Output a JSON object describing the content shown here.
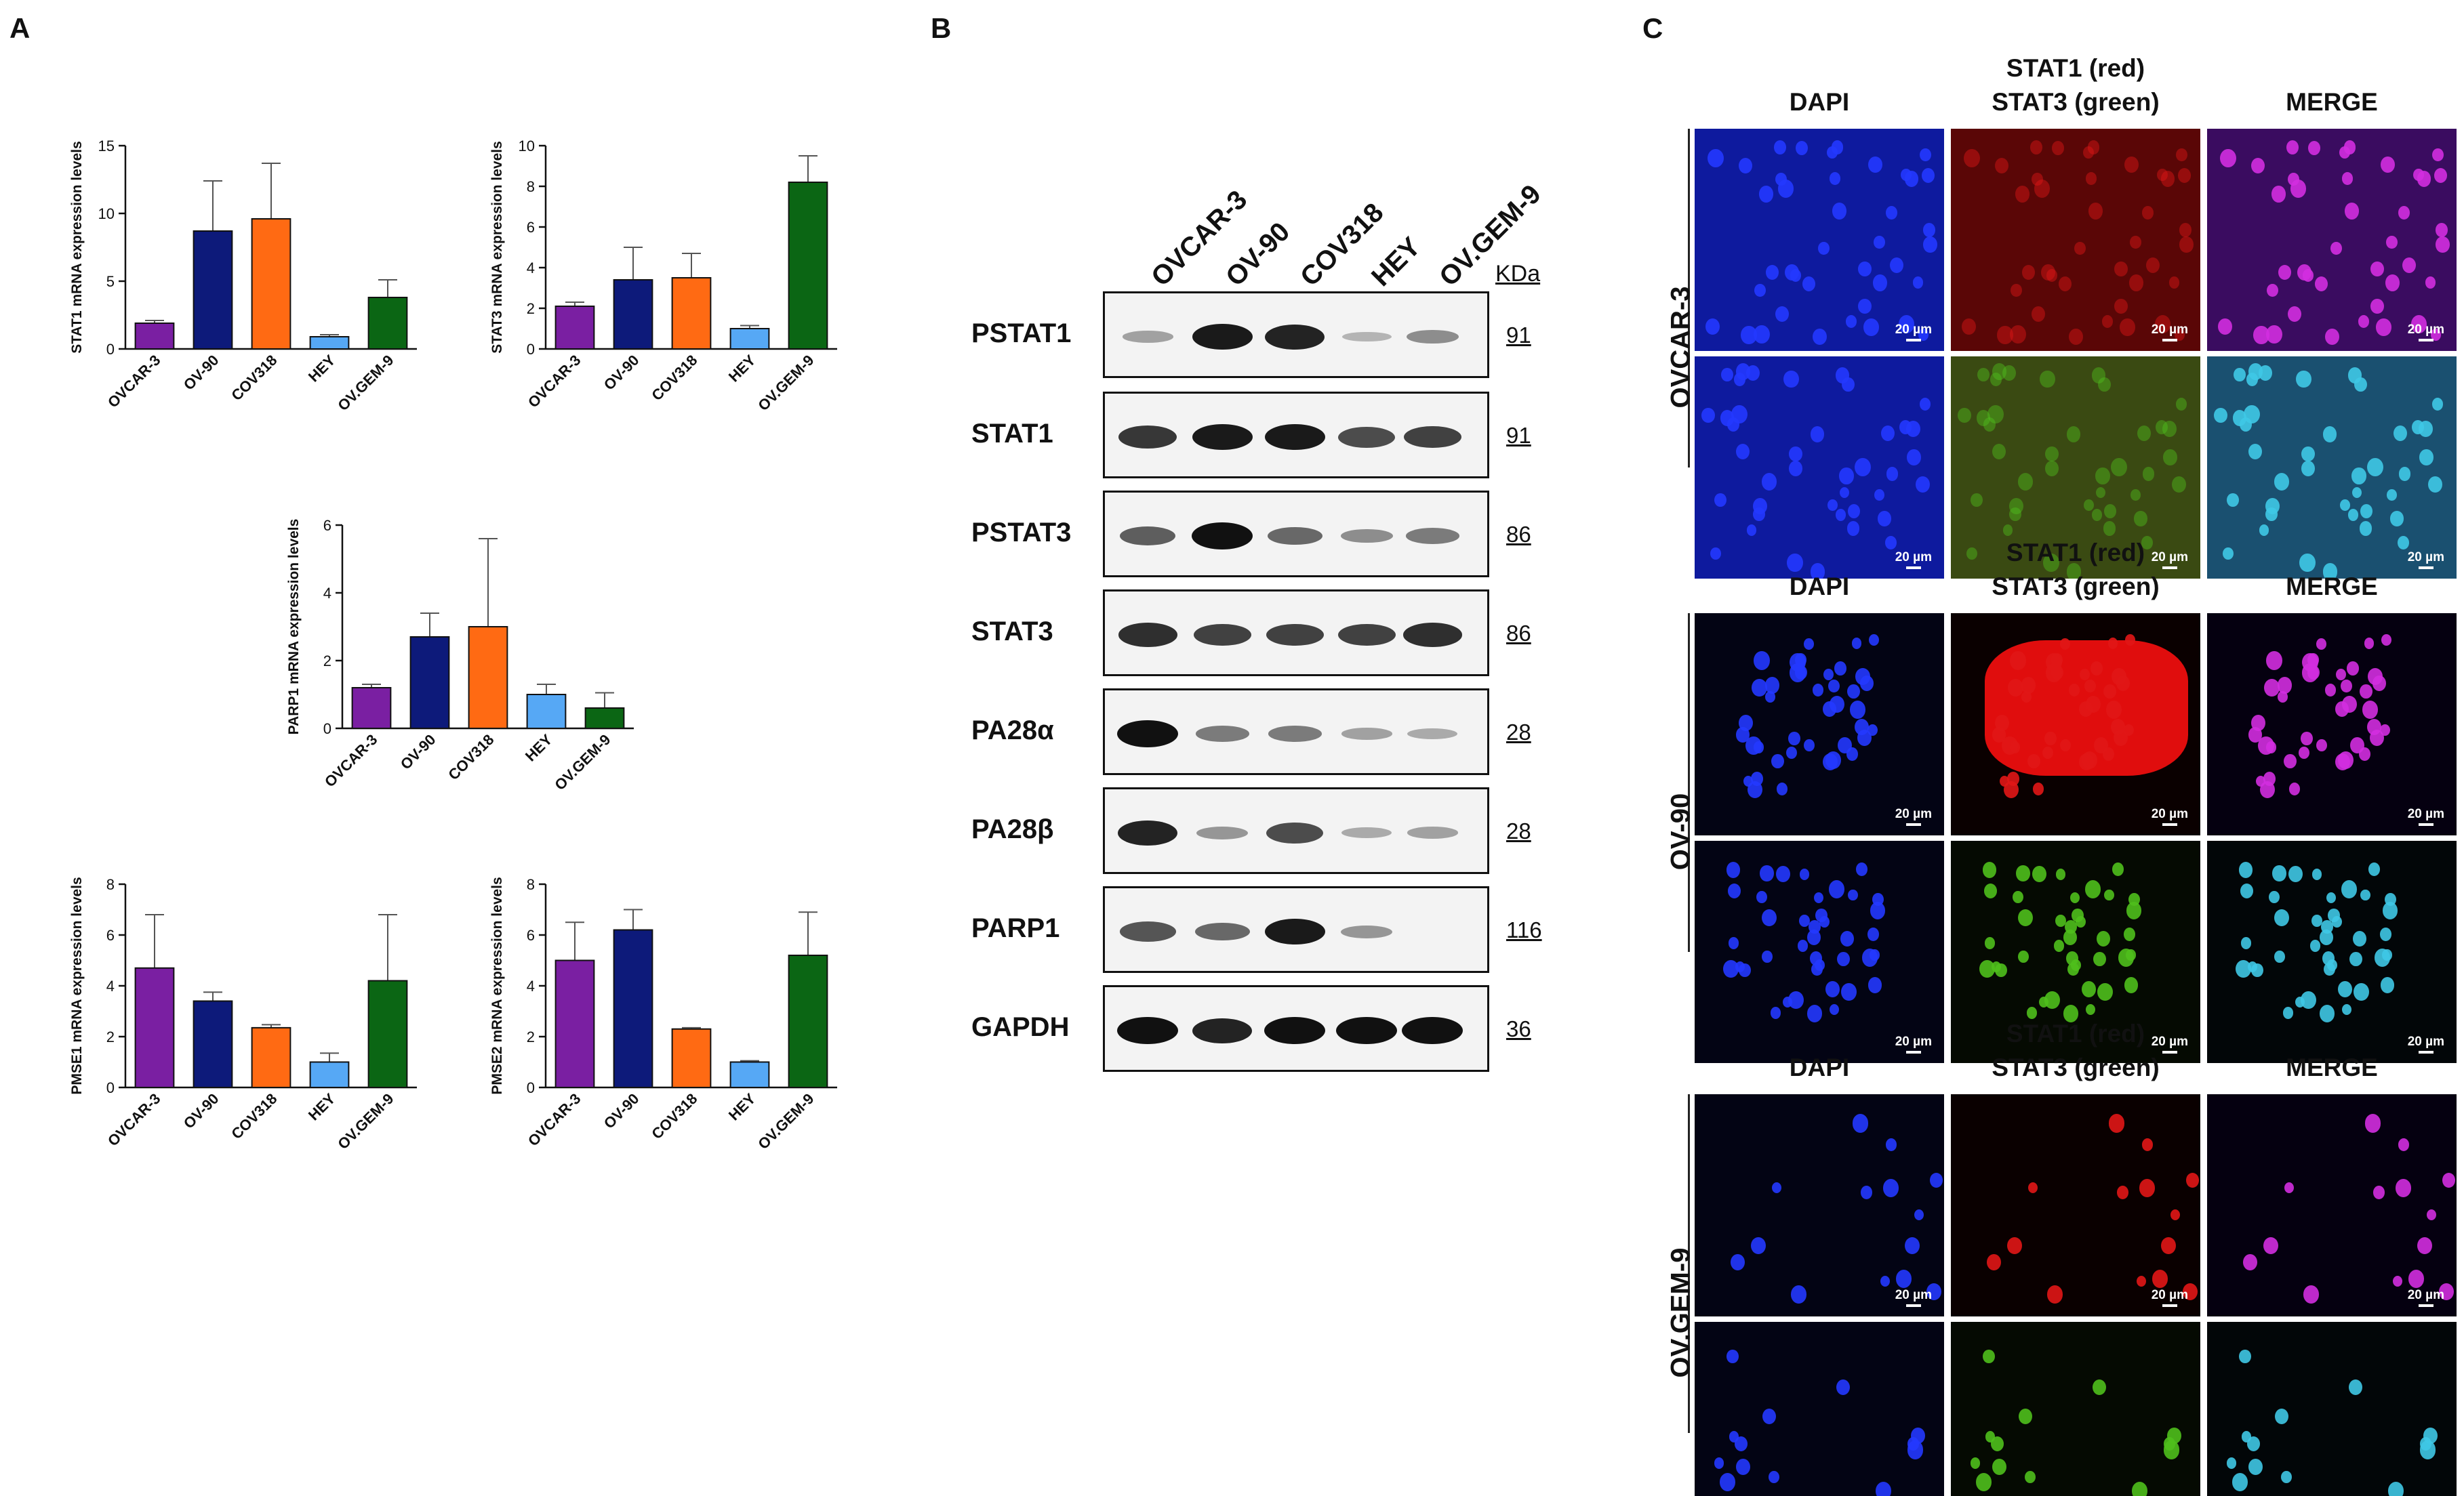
{
  "panels": {
    "a": "A",
    "b": "B",
    "c": "C"
  },
  "colors": {
    "OVCAR-3": "#7a1fa2",
    "OV-90": "#0d1a7a",
    "COV318": "#ff6a13",
    "HEY": "#56a8f5",
    "OV.GEM-9": "#0b6614"
  },
  "chart_data": [
    {
      "type": "bar",
      "categories": [
        "OVCAR-3",
        "OV-90",
        "COV318",
        "HEY",
        "OV.GEM-9"
      ],
      "values": [
        1.9,
        8.7,
        9.6,
        0.9,
        3.8
      ],
      "errors": [
        0.2,
        3.7,
        4.1,
        0.15,
        1.3
      ],
      "ylabel": "STAT1 mRNA expression levels",
      "ylim": [
        0,
        15
      ],
      "yticks": [
        "0",
        "5",
        "10",
        "15"
      ]
    },
    {
      "type": "bar",
      "categories": [
        "OVCAR-3",
        "OV-90",
        "COV318",
        "HEY",
        "OV.GEM-9"
      ],
      "values": [
        2.1,
        3.4,
        3.5,
        1.0,
        8.2
      ],
      "errors": [
        0.2,
        1.6,
        1.2,
        0.15,
        1.3
      ],
      "ylabel": "STAT3 mRNA expression levels",
      "ylim": [
        0,
        10
      ],
      "yticks": [
        "0",
        "2",
        "4",
        "6",
        "8",
        "10"
      ]
    },
    {
      "type": "bar",
      "categories": [
        "OVCAR-3",
        "OV-90",
        "COV318",
        "HEY",
        "OV.GEM-9"
      ],
      "values": [
        1.2,
        2.7,
        3.0,
        1.0,
        0.6
      ],
      "errors": [
        0.1,
        0.7,
        2.6,
        0.3,
        0.45
      ],
      "ylabel": "PARP1 mRNA expression levels",
      "ylim": [
        0,
        6
      ],
      "yticks": [
        "0",
        "2",
        "4",
        "6"
      ]
    },
    {
      "type": "bar",
      "categories": [
        "OVCAR-3",
        "OV-90",
        "COV318",
        "HEY",
        "OV.GEM-9"
      ],
      "values": [
        4.7,
        3.4,
        2.35,
        1.0,
        4.2
      ],
      "errors": [
        2.1,
        0.35,
        0.12,
        0.35,
        2.6
      ],
      "ylabel": "PMSE1 mRNA expression levels",
      "ylim": [
        0,
        8
      ],
      "yticks": [
        "0",
        "2",
        "4",
        "6",
        "8"
      ]
    },
    {
      "type": "bar",
      "categories": [
        "OVCAR-3",
        "OV-90",
        "COV318",
        "HEY",
        "OV.GEM-9"
      ],
      "values": [
        5.0,
        6.2,
        2.3,
        1.0,
        5.2
      ],
      "errors": [
        1.5,
        0.8,
        0.05,
        0.05,
        1.7
      ],
      "ylabel": "PMSE2 mRNA expression levels",
      "ylim": [
        0,
        8
      ],
      "yticks": [
        "0",
        "2",
        "4",
        "6",
        "8"
      ]
    }
  ],
  "western_blot": {
    "lanes": [
      "OVCAR-3",
      "OV-90",
      "COV318",
      "HEY",
      "OV.GEM-9"
    ],
    "kda_header": "KDa",
    "rows": [
      {
        "protein": "PSTAT1",
        "kda": "91",
        "intensity": [
          0.25,
          0.95,
          0.9,
          0.15,
          0.35
        ]
      },
      {
        "protein": "STAT1",
        "kda": "91",
        "intensity": [
          0.8,
          0.95,
          0.95,
          0.7,
          0.75
        ]
      },
      {
        "protein": "PSTAT3",
        "kda": "86",
        "intensity": [
          0.6,
          1.0,
          0.55,
          0.35,
          0.45
        ]
      },
      {
        "protein": "STAT3",
        "kda": "86",
        "intensity": [
          0.85,
          0.75,
          0.75,
          0.75,
          0.85
        ]
      },
      {
        "protein": "PA28α",
        "kda": "28",
        "intensity": [
          1.0,
          0.45,
          0.45,
          0.25,
          0.2
        ]
      },
      {
        "protein": "PA28β",
        "kda": "28",
        "intensity": [
          0.9,
          0.3,
          0.7,
          0.2,
          0.25
        ]
      },
      {
        "protein": "PARP1",
        "kda": "116",
        "intensity": [
          0.65,
          0.55,
          0.95,
          0.3,
          0.0
        ]
      },
      {
        "protein": "GAPDH",
        "kda": "36",
        "intensity": [
          1.0,
          0.9,
          1.0,
          1.0,
          1.0
        ]
      }
    ]
  },
  "microscopy": {
    "col_dapi": "DAPI",
    "col_stat_line1": "STAT1 (red)",
    "col_stat_line2": "STAT3 (green)",
    "col_merge": "MERGE",
    "scale_label": "20 µm",
    "groups": [
      {
        "cell_line": "OVCAR-3"
      },
      {
        "cell_line": "OV-90"
      },
      {
        "cell_line": "OV.GEM-9"
      }
    ]
  }
}
